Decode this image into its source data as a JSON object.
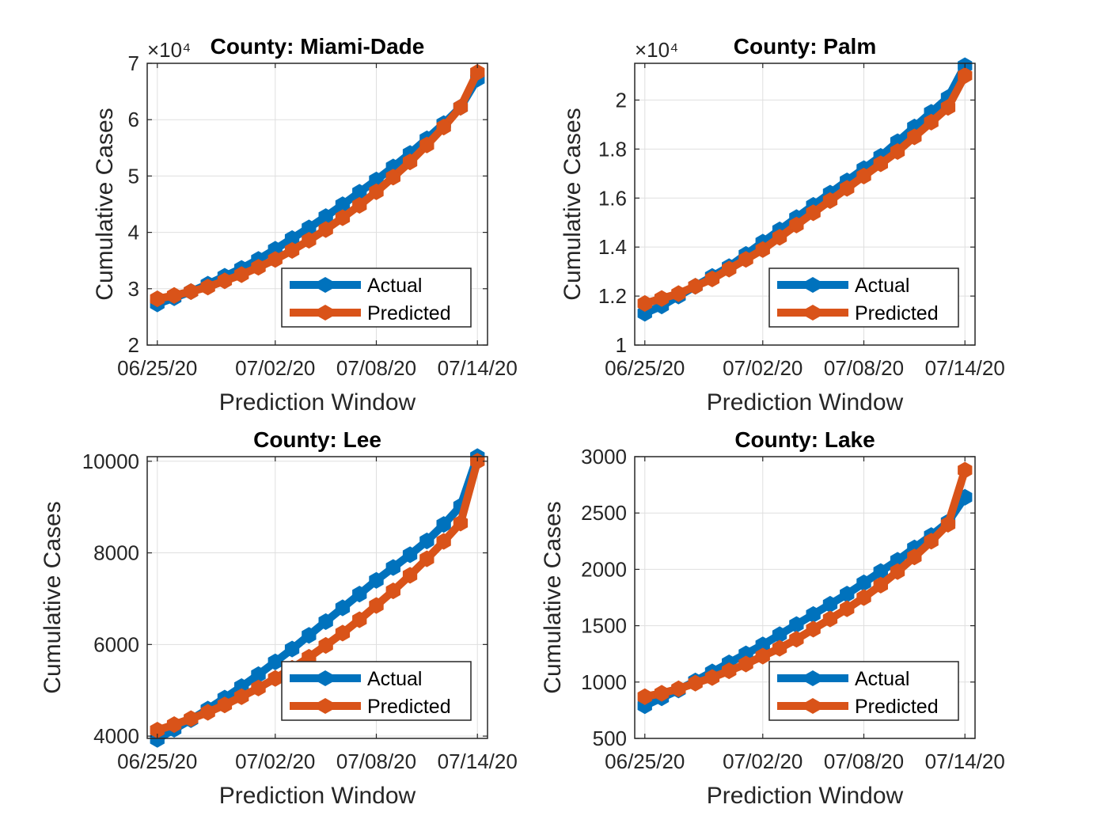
{
  "colors": {
    "actual": "#0072BD",
    "predicted": "#D95319",
    "grid": "#dfdfdf",
    "axis": "#262626"
  },
  "chart_data": [
    {
      "type": "line",
      "title": "County: Miami-Dade",
      "xlabel": "Prediction Window",
      "ylabel": "Cumulative Cases",
      "exponent_label": "×10⁴",
      "x_ticks": [
        {
          "day": 0,
          "label": "06/25/20"
        },
        {
          "day": 7,
          "label": "07/02/20"
        },
        {
          "day": 13,
          "label": "07/08/20"
        },
        {
          "day": 19,
          "label": "07/14/20"
        }
      ],
      "xlim_days": [
        -0.6,
        19.6
      ],
      "ylim": [
        2,
        7
      ],
      "y_ticks": [
        {
          "value": 2,
          "label": "2"
        },
        {
          "value": 3,
          "label": "3"
        },
        {
          "value": 4,
          "label": "4"
        },
        {
          "value": 5,
          "label": "5"
        },
        {
          "value": 6,
          "label": "6"
        },
        {
          "value": 7,
          "label": "7"
        }
      ],
      "grid": true,
      "legend": "bottom-right",
      "series": [
        {
          "name": "Actual",
          "x_days": [
            0,
            1,
            2,
            3,
            4,
            5,
            6,
            7,
            8,
            9,
            10,
            11,
            12,
            13,
            14,
            15,
            16,
            17,
            18,
            19
          ],
          "values": [
            2.73,
            2.84,
            2.95,
            3.08,
            3.22,
            3.36,
            3.52,
            3.7,
            3.89,
            4.08,
            4.28,
            4.49,
            4.71,
            4.93,
            5.16,
            5.4,
            5.66,
            5.93,
            6.22,
            6.72
          ]
        },
        {
          "name": "Predicted",
          "x_days": [
            0,
            1,
            2,
            3,
            4,
            5,
            6,
            7,
            8,
            9,
            10,
            11,
            12,
            13,
            14,
            15,
            16,
            17,
            18,
            19
          ],
          "values": [
            2.82,
            2.88,
            2.95,
            3.03,
            3.14,
            3.25,
            3.38,
            3.52,
            3.68,
            3.86,
            4.05,
            4.26,
            4.48,
            4.72,
            4.98,
            5.25,
            5.55,
            5.87,
            6.22,
            6.84
          ]
        }
      ]
    },
    {
      "type": "line",
      "title": "County: Palm",
      "xlabel": "Prediction Window",
      "ylabel": "Cumulative Cases",
      "exponent_label": "×10⁴",
      "x_ticks": [
        {
          "day": 0,
          "label": "06/25/20"
        },
        {
          "day": 7,
          "label": "07/02/20"
        },
        {
          "day": 13,
          "label": "07/08/20"
        },
        {
          "day": 19,
          "label": "07/14/20"
        }
      ],
      "xlim_days": [
        -0.6,
        19.6
      ],
      "ylim": [
        1,
        2.15
      ],
      "y_ticks": [
        {
          "value": 1,
          "label": "1"
        },
        {
          "value": 1.2,
          "label": "1.2"
        },
        {
          "value": 1.4,
          "label": "1.4"
        },
        {
          "value": 1.6,
          "label": "1.6"
        },
        {
          "value": 1.8,
          "label": "1.8"
        },
        {
          "value": 2,
          "label": "2"
        }
      ],
      "grid": true,
      "legend": "bottom-right",
      "series": [
        {
          "name": "Actual",
          "x_days": [
            0,
            1,
            2,
            3,
            4,
            5,
            6,
            7,
            8,
            9,
            10,
            11,
            12,
            13,
            14,
            15,
            16,
            17,
            18,
            19
          ],
          "values": [
            1.13,
            1.16,
            1.2,
            1.24,
            1.28,
            1.32,
            1.37,
            1.42,
            1.47,
            1.52,
            1.57,
            1.62,
            1.67,
            1.72,
            1.77,
            1.83,
            1.89,
            1.95,
            2.01,
            2.14
          ]
        },
        {
          "name": "Predicted",
          "x_days": [
            0,
            1,
            2,
            3,
            4,
            5,
            6,
            7,
            8,
            9,
            10,
            11,
            12,
            13,
            14,
            15,
            16,
            17,
            18,
            19
          ],
          "values": [
            1.17,
            1.19,
            1.21,
            1.24,
            1.27,
            1.31,
            1.35,
            1.39,
            1.44,
            1.49,
            1.54,
            1.59,
            1.64,
            1.69,
            1.74,
            1.79,
            1.85,
            1.91,
            1.97,
            2.1
          ]
        }
      ]
    },
    {
      "type": "line",
      "title": "County: Lee",
      "xlabel": "Prediction Window",
      "ylabel": "Cumulative Cases",
      "exponent_label": "",
      "x_ticks": [
        {
          "day": 0,
          "label": "06/25/20"
        },
        {
          "day": 7,
          "label": "07/02/20"
        },
        {
          "day": 13,
          "label": "07/08/20"
        },
        {
          "day": 19,
          "label": "07/14/20"
        }
      ],
      "xlim_days": [
        -0.6,
        19.6
      ],
      "ylim": [
        3950,
        10100
      ],
      "y_ticks": [
        {
          "value": 4000,
          "label": "4000"
        },
        {
          "value": 6000,
          "label": "6000"
        },
        {
          "value": 8000,
          "label": "8000"
        },
        {
          "value": 10000,
          "label": "10000"
        }
      ],
      "grid": true,
      "legend": "bottom-right",
      "series": [
        {
          "name": "Actual",
          "x_days": [
            0,
            1,
            2,
            3,
            4,
            5,
            6,
            7,
            8,
            9,
            10,
            11,
            12,
            13,
            14,
            15,
            16,
            17,
            18,
            19
          ],
          "values": [
            3930,
            4150,
            4360,
            4590,
            4830,
            5080,
            5340,
            5620,
            5900,
            6200,
            6500,
            6800,
            7100,
            7400,
            7680,
            7960,
            8260,
            8620,
            9020,
            10100
          ]
        },
        {
          "name": "Predicted",
          "x_days": [
            0,
            1,
            2,
            3,
            4,
            5,
            6,
            7,
            8,
            9,
            10,
            11,
            12,
            13,
            14,
            15,
            16,
            17,
            18,
            19
          ],
          "values": [
            4130,
            4250,
            4380,
            4520,
            4680,
            4860,
            5050,
            5260,
            5480,
            5720,
            5980,
            6250,
            6540,
            6850,
            7170,
            7510,
            7870,
            8250,
            8650,
            10000
          ]
        }
      ]
    },
    {
      "type": "line",
      "title": "County: Lake",
      "xlabel": "Prediction Window",
      "ylabel": "Cumulative Cases",
      "exponent_label": "",
      "x_ticks": [
        {
          "day": 0,
          "label": "06/25/20"
        },
        {
          "day": 7,
          "label": "07/02/20"
        },
        {
          "day": 13,
          "label": "07/08/20"
        },
        {
          "day": 19,
          "label": "07/14/20"
        }
      ],
      "xlim_days": [
        -0.6,
        19.6
      ],
      "ylim": [
        500,
        3000
      ],
      "y_ticks": [
        {
          "value": 500,
          "label": "500"
        },
        {
          "value": 1000,
          "label": "1000"
        },
        {
          "value": 1500,
          "label": "1500"
        },
        {
          "value": 2000,
          "label": "2000"
        },
        {
          "value": 2500,
          "label": "2500"
        },
        {
          "value": 3000,
          "label": "3000"
        }
      ],
      "grid": true,
      "legend": "bottom-right",
      "series": [
        {
          "name": "Actual",
          "x_days": [
            0,
            1,
            2,
            3,
            4,
            5,
            6,
            7,
            8,
            9,
            10,
            11,
            12,
            13,
            14,
            15,
            16,
            17,
            18,
            19
          ],
          "values": [
            790,
            860,
            930,
            1010,
            1090,
            1170,
            1250,
            1330,
            1420,
            1510,
            1600,
            1690,
            1780,
            1880,
            1980,
            2080,
            2190,
            2300,
            2420,
            2640
          ]
        },
        {
          "name": "Predicted",
          "x_days": [
            0,
            1,
            2,
            3,
            4,
            5,
            6,
            7,
            8,
            9,
            10,
            11,
            12,
            13,
            14,
            15,
            16,
            17,
            18,
            19
          ],
          "values": [
            870,
            900,
            940,
            990,
            1040,
            1100,
            1160,
            1230,
            1300,
            1380,
            1470,
            1560,
            1650,
            1750,
            1860,
            1980,
            2110,
            2250,
            2400,
            2880
          ]
        }
      ]
    }
  ]
}
